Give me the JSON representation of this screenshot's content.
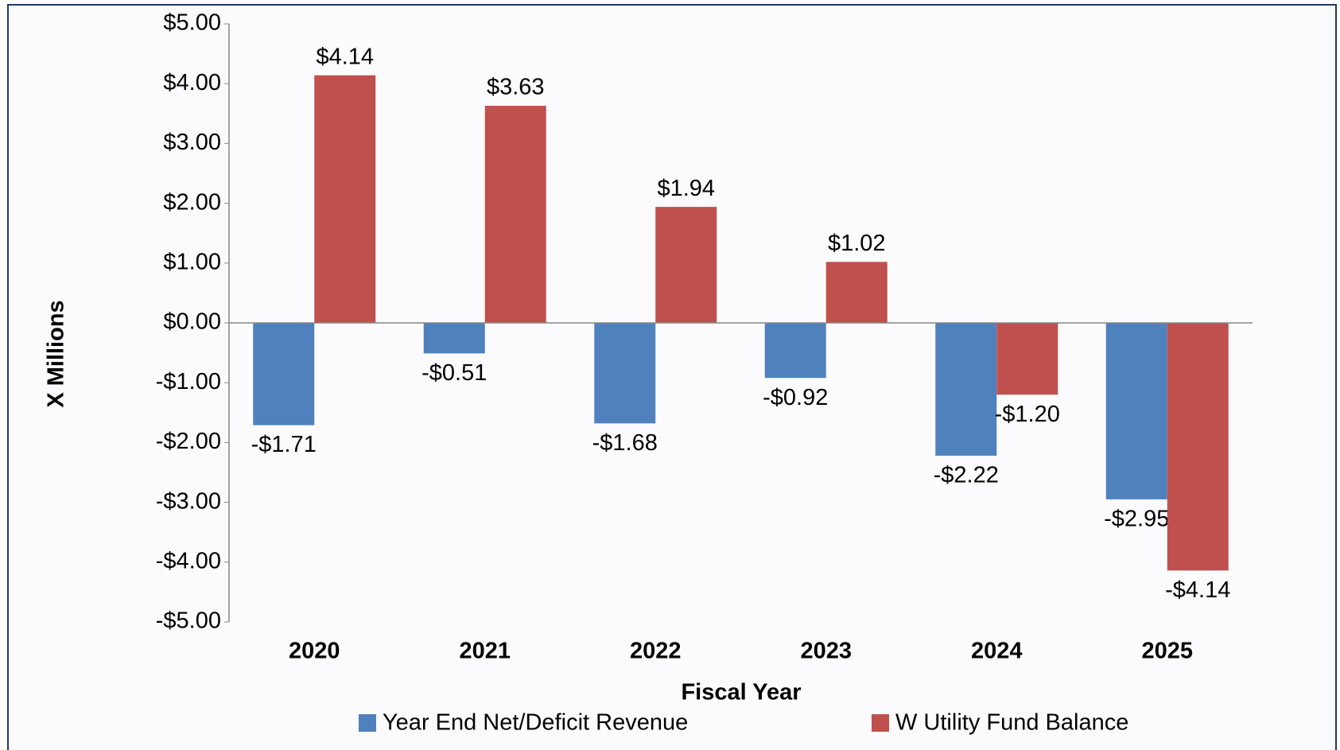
{
  "chart_data": {
    "type": "bar",
    "y_label": "X Millions",
    "x_label": "Fiscal Year",
    "categories": [
      "2020",
      "2021",
      "2022",
      "2023",
      "2024",
      "2025"
    ],
    "series": [
      {
        "name": "Year End Net/Deficit Revenue",
        "color": "#4f81bd",
        "values": [
          -1.71,
          -0.51,
          -1.68,
          -0.92,
          -2.22,
          -2.95
        ],
        "value_labels": [
          "-$1.71",
          "-$0.51",
          "-$1.68",
          "-$0.92",
          "-$2.22",
          "-$2.95"
        ]
      },
      {
        "name": "W Utility Fund Balance",
        "color": "#c0504d",
        "values": [
          4.14,
          3.63,
          1.94,
          1.02,
          -1.2,
          -4.14
        ],
        "value_labels": [
          "$4.14",
          "$3.63",
          "$1.94",
          "$1.02",
          "-$1.20",
          "-$4.14"
        ]
      }
    ],
    "ylim": [
      -5,
      5
    ],
    "yticks": [
      {
        "value": 5,
        "label": "$5.00"
      },
      {
        "value": 4,
        "label": "$4.00"
      },
      {
        "value": 3,
        "label": "$3.00"
      },
      {
        "value": 2,
        "label": "$2.00"
      },
      {
        "value": 1,
        "label": "$1.00"
      },
      {
        "value": 0,
        "label": "$0.00"
      },
      {
        "value": -1,
        "label": "-$1.00"
      },
      {
        "value": -2,
        "label": "-$2.00"
      },
      {
        "value": -3,
        "label": "-$3.00"
      },
      {
        "value": -4,
        "label": "-$4.00"
      },
      {
        "value": -5,
        "label": "-$5.00"
      }
    ],
    "legend": "bottom"
  }
}
